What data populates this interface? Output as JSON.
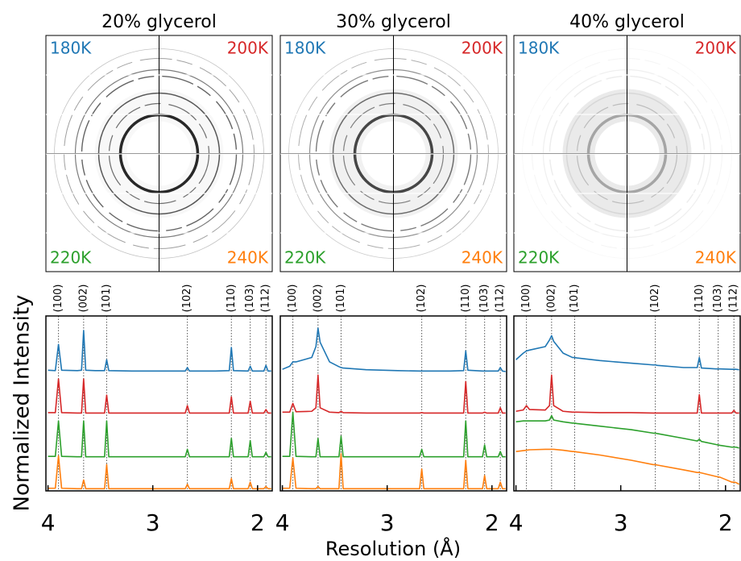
{
  "figure": {
    "ylabel": "Normalized Intensity",
    "xlabel": "Resolution (Å)"
  },
  "chart_data": [
    {
      "type": "line",
      "title": "20% glycerol",
      "x": [
        4.0,
        3.93,
        3.9,
        3.87,
        3.72,
        3.68,
        3.66,
        3.64,
        3.55,
        3.46,
        3.44,
        3.42,
        3.2,
        2.9,
        2.69,
        2.67,
        2.65,
        2.4,
        2.27,
        2.25,
        2.23,
        2.09,
        2.07,
        2.05,
        1.94,
        1.92,
        1.9,
        1.87
      ],
      "xlim": [
        4.02,
        1.86
      ],
      "xticks": [
        4,
        3,
        2
      ],
      "ylim": [
        0,
        4
      ],
      "peaks": [
        {
          "value": 3.9,
          "label": "(100)"
        },
        {
          "value": 3.66,
          "label": "(002)"
        },
        {
          "value": 3.44,
          "label": "(101)"
        },
        {
          "value": 2.67,
          "label": "(102)"
        },
        {
          "value": 2.25,
          "label": "(110)"
        },
        {
          "value": 2.07,
          "label": "(103)"
        },
        {
          "value": 1.92,
          "label": "(112)"
        }
      ],
      "series": [
        {
          "name": "180K",
          "color": "#1f77b4",
          "values": [
            2.76,
            2.75,
            3.35,
            2.76,
            2.75,
            2.76,
            3.67,
            2.76,
            2.75,
            2.75,
            3.0,
            2.75,
            2.74,
            2.74,
            2.74,
            2.82,
            2.74,
            2.74,
            2.75,
            3.28,
            2.75,
            2.74,
            2.85,
            2.74,
            2.74,
            2.87,
            2.74,
            2.74
          ]
        },
        {
          "name": "200K",
          "color": "#d62728",
          "values": [
            1.79,
            1.79,
            2.56,
            1.79,
            1.78,
            1.78,
            2.56,
            1.78,
            1.78,
            1.78,
            2.19,
            1.78,
            1.78,
            1.78,
            1.78,
            1.95,
            1.78,
            1.78,
            1.78,
            2.15,
            1.78,
            1.78,
            2.05,
            1.78,
            1.78,
            1.86,
            1.78,
            1.78
          ]
        },
        {
          "name": "220K",
          "color": "#2ca02c",
          "values": [
            0.79,
            0.79,
            1.6,
            0.79,
            0.78,
            0.78,
            1.6,
            0.78,
            0.78,
            0.78,
            1.6,
            0.78,
            0.78,
            0.78,
            0.78,
            0.95,
            0.78,
            0.78,
            0.78,
            1.2,
            0.78,
            0.78,
            1.15,
            0.78,
            0.78,
            0.88,
            0.78,
            0.78
          ]
        },
        {
          "name": "240K",
          "color": "#ff7f0e",
          "values": [
            0.06,
            0.06,
            0.8,
            0.06,
            0.05,
            0.05,
            0.25,
            0.05,
            0.05,
            0.05,
            0.6,
            0.05,
            0.05,
            0.05,
            0.05,
            0.15,
            0.05,
            0.05,
            0.05,
            0.28,
            0.05,
            0.05,
            0.2,
            0.05,
            0.05,
            0.1,
            0.05,
            0.05
          ]
        }
      ]
    },
    {
      "type": "line",
      "title": "30% glycerol",
      "x": [
        4.0,
        3.93,
        3.9,
        3.87,
        3.72,
        3.68,
        3.66,
        3.64,
        3.55,
        3.46,
        3.44,
        3.42,
        3.2,
        2.9,
        2.69,
        2.67,
        2.65,
        2.4,
        2.27,
        2.25,
        2.23,
        2.09,
        2.07,
        2.05,
        1.94,
        1.92,
        1.9,
        1.87
      ],
      "xlim": [
        4.02,
        1.86
      ],
      "xticks": [
        4,
        3,
        2
      ],
      "ylim": [
        0,
        4
      ],
      "peaks": [
        {
          "value": 3.9,
          "label": "(100)"
        },
        {
          "value": 3.66,
          "label": "(002)"
        },
        {
          "value": 3.44,
          "label": "(101)"
        },
        {
          "value": 2.67,
          "label": "(102)"
        },
        {
          "value": 2.25,
          "label": "(110)"
        },
        {
          "value": 2.07,
          "label": "(103)"
        },
        {
          "value": 1.92,
          "label": "(112)"
        }
      ],
      "series": [
        {
          "name": "180K",
          "color": "#1f77b4",
          "values": [
            2.78,
            2.85,
            2.95,
            2.95,
            3.05,
            3.3,
            3.72,
            3.4,
            2.95,
            2.84,
            2.82,
            2.81,
            2.77,
            2.75,
            2.74,
            2.74,
            2.74,
            2.74,
            2.75,
            3.2,
            2.76,
            2.74,
            2.74,
            2.74,
            2.74,
            2.82,
            2.74,
            2.73
          ]
        },
        {
          "name": "200K",
          "color": "#d62728",
          "values": [
            1.8,
            1.8,
            2.0,
            1.81,
            1.82,
            1.9,
            2.65,
            1.9,
            1.8,
            1.79,
            1.82,
            1.79,
            1.78,
            1.78,
            1.78,
            1.79,
            1.78,
            1.78,
            1.78,
            2.5,
            1.78,
            1.78,
            1.8,
            1.78,
            1.78,
            1.9,
            1.78,
            1.78
          ]
        },
        {
          "name": "220K",
          "color": "#2ca02c",
          "values": [
            0.79,
            0.79,
            1.8,
            0.79,
            0.78,
            0.78,
            1.2,
            0.78,
            0.78,
            0.78,
            1.25,
            0.78,
            0.78,
            0.78,
            0.78,
            0.95,
            0.78,
            0.78,
            0.78,
            1.6,
            0.78,
            0.78,
            1.05,
            0.78,
            0.78,
            0.9,
            0.78,
            0.78
          ]
        },
        {
          "name": "240K",
          "color": "#ff7f0e",
          "values": [
            0.06,
            0.06,
            0.75,
            0.06,
            0.05,
            0.05,
            0.1,
            0.05,
            0.05,
            0.05,
            0.85,
            0.05,
            0.05,
            0.05,
            0.05,
            0.5,
            0.05,
            0.05,
            0.05,
            0.7,
            0.05,
            0.05,
            0.35,
            0.05,
            0.05,
            0.2,
            0.05,
            0.05
          ]
        }
      ]
    },
    {
      "type": "line",
      "title": "40% glycerol",
      "x": [
        4.0,
        3.93,
        3.9,
        3.87,
        3.72,
        3.68,
        3.66,
        3.64,
        3.55,
        3.46,
        3.44,
        3.42,
        3.2,
        2.9,
        2.69,
        2.67,
        2.65,
        2.4,
        2.27,
        2.25,
        2.23,
        2.09,
        2.07,
        2.05,
        1.94,
        1.92,
        1.9,
        1.87
      ],
      "xlim": [
        4.02,
        1.86
      ],
      "xticks": [
        4,
        3,
        2
      ],
      "ylim": [
        0,
        4
      ],
      "peaks": [
        {
          "value": 3.9,
          "label": "(100)"
        },
        {
          "value": 3.66,
          "label": "(002)"
        },
        {
          "value": 3.44,
          "label": "(101)"
        },
        {
          "value": 2.67,
          "label": "(102)"
        },
        {
          "value": 2.25,
          "label": "(110)"
        },
        {
          "value": 2.07,
          "label": "(103)"
        },
        {
          "value": 1.92,
          "label": "(112)"
        }
      ],
      "series": [
        {
          "name": "180K",
          "color": "#1f77b4",
          "values": [
            3.0,
            3.15,
            3.2,
            3.22,
            3.3,
            3.45,
            3.55,
            3.42,
            3.15,
            3.05,
            3.05,
            3.04,
            2.98,
            2.92,
            2.88,
            2.88,
            2.87,
            2.82,
            2.82,
            3.05,
            2.81,
            2.79,
            2.79,
            2.79,
            2.78,
            2.78,
            2.78,
            2.77
          ]
        },
        {
          "name": "200K",
          "color": "#d62728",
          "values": [
            1.82,
            1.85,
            1.95,
            1.86,
            1.85,
            1.95,
            2.65,
            1.95,
            1.82,
            1.8,
            1.8,
            1.8,
            1.79,
            1.79,
            1.78,
            1.78,
            1.78,
            1.78,
            1.78,
            2.2,
            1.78,
            1.78,
            1.78,
            1.78,
            1.78,
            1.84,
            1.78,
            1.78
          ]
        },
        {
          "name": "220K",
          "color": "#2ca02c",
          "values": [
            1.58,
            1.6,
            1.6,
            1.6,
            1.6,
            1.62,
            1.72,
            1.62,
            1.58,
            1.55,
            1.55,
            1.54,
            1.48,
            1.4,
            1.32,
            1.32,
            1.31,
            1.2,
            1.14,
            1.18,
            1.13,
            1.06,
            1.05,
            1.04,
            1.0,
            1.0,
            1.0,
            0.98
          ]
        },
        {
          "name": "240K",
          "color": "#ff7f0e",
          "values": [
            0.9,
            0.92,
            0.93,
            0.94,
            0.95,
            0.95,
            0.95,
            0.95,
            0.93,
            0.9,
            0.9,
            0.89,
            0.82,
            0.7,
            0.6,
            0.6,
            0.59,
            0.48,
            0.42,
            0.42,
            0.41,
            0.33,
            0.32,
            0.31,
            0.2,
            0.2,
            0.19,
            0.15
          ]
        }
      ]
    }
  ]
}
